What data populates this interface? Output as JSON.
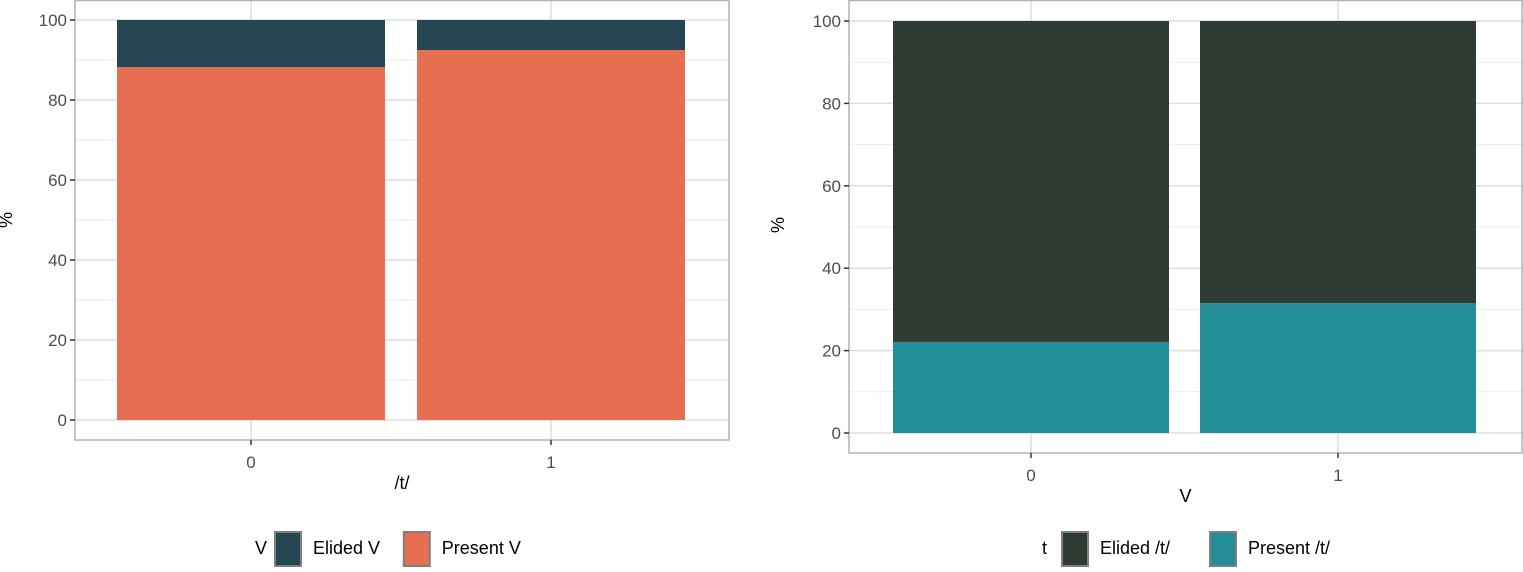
{
  "chart_data": [
    {
      "type": "bar",
      "stacked": true,
      "title": "",
      "xlabel": "/t/",
      "ylabel": "%",
      "ylim": [
        0,
        100
      ],
      "yticks": [
        0,
        20,
        40,
        60,
        80,
        100
      ],
      "categories": [
        "0",
        "1"
      ],
      "legend_title": "V",
      "legend_position": "bottom",
      "grid": true,
      "series": [
        {
          "name": "Elided V",
          "color": "#264653",
          "values": [
            11.8,
            7.5
          ]
        },
        {
          "name": "Present V",
          "color": "#E76F51",
          "values": [
            88.2,
            92.5
          ]
        }
      ]
    },
    {
      "type": "bar",
      "stacked": true,
      "title": "",
      "xlabel": "V",
      "ylabel": "%",
      "ylim": [
        0,
        100
      ],
      "yticks": [
        0,
        20,
        40,
        60,
        80,
        100
      ],
      "categories": [
        "0",
        "1"
      ],
      "legend_title": "t",
      "legend_position": "bottom",
      "grid": true,
      "series": [
        {
          "name": "Elided /t/",
          "color": "#2F3C33",
          "values": [
            77.9,
            68.5
          ]
        },
        {
          "name": "Present /t/",
          "color": "#238E97",
          "values": [
            22.1,
            31.5
          ]
        }
      ]
    }
  ]
}
